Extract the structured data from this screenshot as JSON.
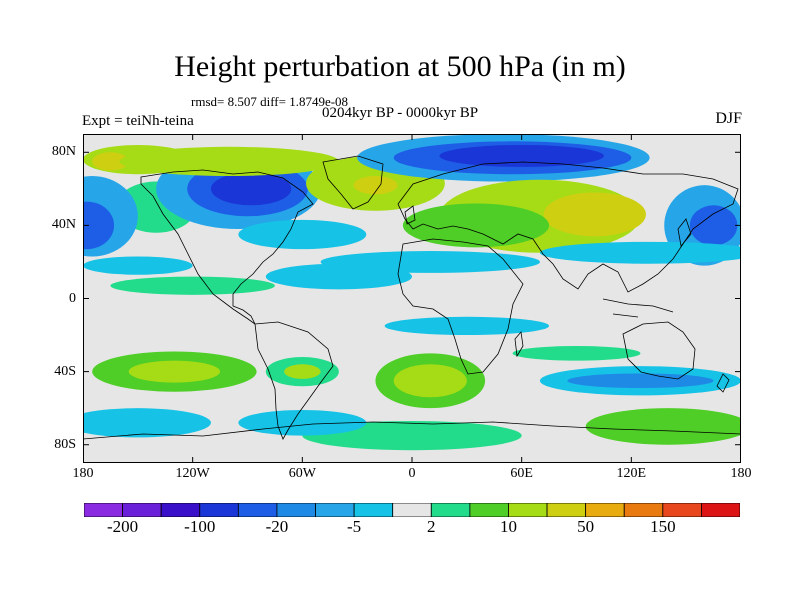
{
  "title": "Height perturbation at 500 hPa (in m)",
  "stats_line": "rmsd= 8.507 diff= 1.8749e-08",
  "period": "0204kyr BP - 0000kyr BP",
  "experiment": "Expt = teiNh-teina",
  "season": "DJF",
  "map": {
    "projection": "cylindrical-equidistant",
    "lon_range": [
      -180,
      180
    ],
    "lat_range": [
      -90,
      90
    ],
    "lat_ticks": [
      {
        "value": 80,
        "label": "80N"
      },
      {
        "value": 40,
        "label": "40N"
      },
      {
        "value": 0,
        "label": "0"
      },
      {
        "value": -40,
        "label": "40S"
      },
      {
        "value": -80,
        "label": "80S"
      }
    ],
    "lon_ticks": [
      {
        "value": -180,
        "label": "180"
      },
      {
        "value": -120,
        "label": "120W"
      },
      {
        "value": -60,
        "label": "60W"
      },
      {
        "value": 0,
        "label": "0"
      },
      {
        "value": 60,
        "label": "60E"
      },
      {
        "value": 120,
        "label": "120E"
      },
      {
        "value": 180,
        "label": "180"
      }
    ]
  },
  "colorbar": {
    "colors": [
      "#8a2be2",
      "#6a1fd8",
      "#3a10c8",
      "#1a36d6",
      "#1e5ee6",
      "#1e8ae6",
      "#26a6e8",
      "#16c2e6",
      "#e6e6e6",
      "#22dc8c",
      "#4ece26",
      "#a6dc16",
      "#cfcf12",
      "#e8ac10",
      "#e87a10",
      "#e8461c",
      "#dc1414"
    ],
    "labels": [
      {
        "boundary": 1,
        "text": "-200"
      },
      {
        "boundary": 3,
        "text": "-100"
      },
      {
        "boundary": 5,
        "text": "-20"
      },
      {
        "boundary": 7,
        "text": "-5"
      },
      {
        "boundary": 9,
        "text": "2"
      },
      {
        "boundary": 11,
        "text": "10"
      },
      {
        "boundary": 13,
        "text": "50"
      },
      {
        "boundary": 15,
        "text": "150"
      }
    ]
  },
  "field_patches": [
    {
      "lon": -150,
      "lat": 76,
      "rlon": 30,
      "rlat": 8,
      "color": "#a6dc16"
    },
    {
      "lon": -165,
      "lat": 75,
      "rlon": 10,
      "rlat": 5,
      "color": "#cfcf12"
    },
    {
      "lon": -140,
      "lat": 50,
      "rlon": 22,
      "rlat": 14,
      "color": "#22dc8c"
    },
    {
      "lon": -175,
      "lat": 45,
      "rlon": 25,
      "rlat": 22,
      "color": "#26a6e8"
    },
    {
      "lon": -178,
      "lat": 40,
      "rlon": 15,
      "rlat": 13,
      "color": "#1e5ee6"
    },
    {
      "lon": -95,
      "lat": 60,
      "rlon": 45,
      "rlat": 22,
      "color": "#26a6e8"
    },
    {
      "lon": -90,
      "lat": 60,
      "rlon": 33,
      "rlat": 15,
      "color": "#1e5ee6"
    },
    {
      "lon": -88,
      "lat": 60,
      "rlon": 22,
      "rlat": 9,
      "color": "#1a36d6"
    },
    {
      "lon": -100,
      "lat": 75,
      "rlon": 60,
      "rlat": 8,
      "color": "#a6dc16"
    },
    {
      "lon": -20,
      "lat": 63,
      "rlon": 38,
      "rlat": 15,
      "color": "#a6dc16"
    },
    {
      "lon": -20,
      "lat": 62,
      "rlon": 12,
      "rlat": 5,
      "color": "#cfcf12"
    },
    {
      "lon": 50,
      "lat": 77,
      "rlon": 80,
      "rlat": 13,
      "color": "#26a6e8"
    },
    {
      "lon": 55,
      "lat": 77,
      "rlon": 65,
      "rlat": 9,
      "color": "#1e5ee6"
    },
    {
      "lon": 60,
      "lat": 78,
      "rlon": 45,
      "rlat": 6,
      "color": "#1a36d6"
    },
    {
      "lon": 70,
      "lat": 45,
      "rlon": 55,
      "rlat": 20,
      "color": "#a6dc16"
    },
    {
      "lon": 100,
      "lat": 46,
      "rlon": 28,
      "rlat": 12,
      "color": "#cfcf12"
    },
    {
      "lon": 35,
      "lat": 40,
      "rlon": 40,
      "rlat": 12,
      "color": "#4ece26"
    },
    {
      "lon": 160,
      "lat": 40,
      "rlon": 22,
      "rlat": 22,
      "color": "#26a6e8"
    },
    {
      "lon": 165,
      "lat": 40,
      "rlon": 13,
      "rlat": 11,
      "color": "#1e5ee6"
    },
    {
      "lon": -60,
      "lat": 35,
      "rlon": 35,
      "rlat": 8,
      "color": "#16c2e6"
    },
    {
      "lon": -40,
      "lat": 12,
      "rlon": 40,
      "rlat": 7,
      "color": "#16c2e6"
    },
    {
      "lon": 10,
      "lat": 20,
      "rlon": 60,
      "rlat": 6,
      "color": "#16c2e6"
    },
    {
      "lon": 130,
      "lat": 25,
      "rlon": 60,
      "rlat": 6,
      "color": "#16c2e6"
    },
    {
      "lon": -150,
      "lat": 18,
      "rlon": 30,
      "rlat": 5,
      "color": "#16c2e6"
    },
    {
      "lon": -120,
      "lat": 7,
      "rlon": 45,
      "rlat": 5,
      "color": "#22dc8c"
    },
    {
      "lon": 30,
      "lat": -15,
      "rlon": 45,
      "rlat": 5,
      "color": "#16c2e6"
    },
    {
      "lon": 10,
      "lat": -45,
      "rlon": 30,
      "rlat": 15,
      "color": "#4ece26"
    },
    {
      "lon": 10,
      "lat": -45,
      "rlon": 20,
      "rlat": 9,
      "color": "#a6dc16"
    },
    {
      "lon": -130,
      "lat": -40,
      "rlon": 45,
      "rlat": 11,
      "color": "#4ece26"
    },
    {
      "lon": -130,
      "lat": -40,
      "rlon": 25,
      "rlat": 6,
      "color": "#a6dc16"
    },
    {
      "lon": -60,
      "lat": -40,
      "rlon": 20,
      "rlat": 8,
      "color": "#22dc8c"
    },
    {
      "lon": -60,
      "lat": -40,
      "rlon": 10,
      "rlat": 4,
      "color": "#a6dc16"
    },
    {
      "lon": 125,
      "lat": -45,
      "rlon": 55,
      "rlat": 8,
      "color": "#16c2e6"
    },
    {
      "lon": 125,
      "lat": -45,
      "rlon": 40,
      "rlat": 4,
      "color": "#1e8ae6"
    },
    {
      "lon": 140,
      "lat": -70,
      "rlon": 45,
      "rlat": 10,
      "color": "#4ece26"
    },
    {
      "lon": 0,
      "lat": -75,
      "rlon": 60,
      "rlat": 8,
      "color": "#22dc8c"
    },
    {
      "lon": -150,
      "lat": -68,
      "rlon": 40,
      "rlat": 8,
      "color": "#16c2e6"
    },
    {
      "lon": -60,
      "lat": -68,
      "rlon": 35,
      "rlat": 7,
      "color": "#16c2e6"
    },
    {
      "lon": 90,
      "lat": -30,
      "rlon": 35,
      "rlat": 4,
      "color": "#22dc8c"
    }
  ]
}
